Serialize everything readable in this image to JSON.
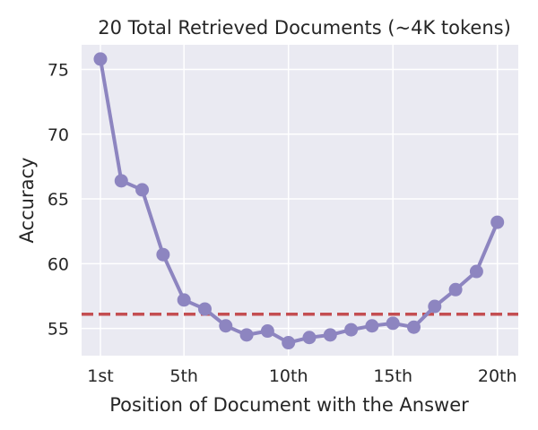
{
  "chart_data": {
    "type": "line",
    "title": "20 Total Retrieved Documents (~4K tokens)",
    "xlabel": "Position of Document with the Answer",
    "ylabel": "Accuracy",
    "x": [
      1,
      2,
      3,
      4,
      5,
      6,
      7,
      8,
      9,
      10,
      11,
      12,
      13,
      14,
      15,
      16,
      17,
      18,
      19,
      20
    ],
    "xticks": [
      {
        "value": 1,
        "label": "1st"
      },
      {
        "value": 5,
        "label": "5th"
      },
      {
        "value": 10,
        "label": "10th"
      },
      {
        "value": 15,
        "label": "15th"
      },
      {
        "value": 20,
        "label": "20th"
      }
    ],
    "yticks": [
      55,
      60,
      65,
      70,
      75
    ],
    "xlim": [
      0.1,
      21.0
    ],
    "ylim": [
      52.9,
      76.9
    ],
    "grid": true,
    "series": [
      {
        "values": [
          75.8,
          66.4,
          65.7,
          60.7,
          57.2,
          56.5,
          55.2,
          54.5,
          54.8,
          53.9,
          54.3,
          54.5,
          54.9,
          55.2,
          55.4,
          55.1,
          56.7,
          58.0,
          59.4,
          63.2
        ],
        "color": "#8d85c0",
        "style": "solid",
        "markers": true
      }
    ],
    "reference_lines": [
      {
        "y": 56.1,
        "color": "#c44e52",
        "style": "dashed"
      }
    ],
    "colors": {
      "plot_background": "#eaeaf2",
      "grid": "#ffffff",
      "text": "#262626"
    }
  }
}
